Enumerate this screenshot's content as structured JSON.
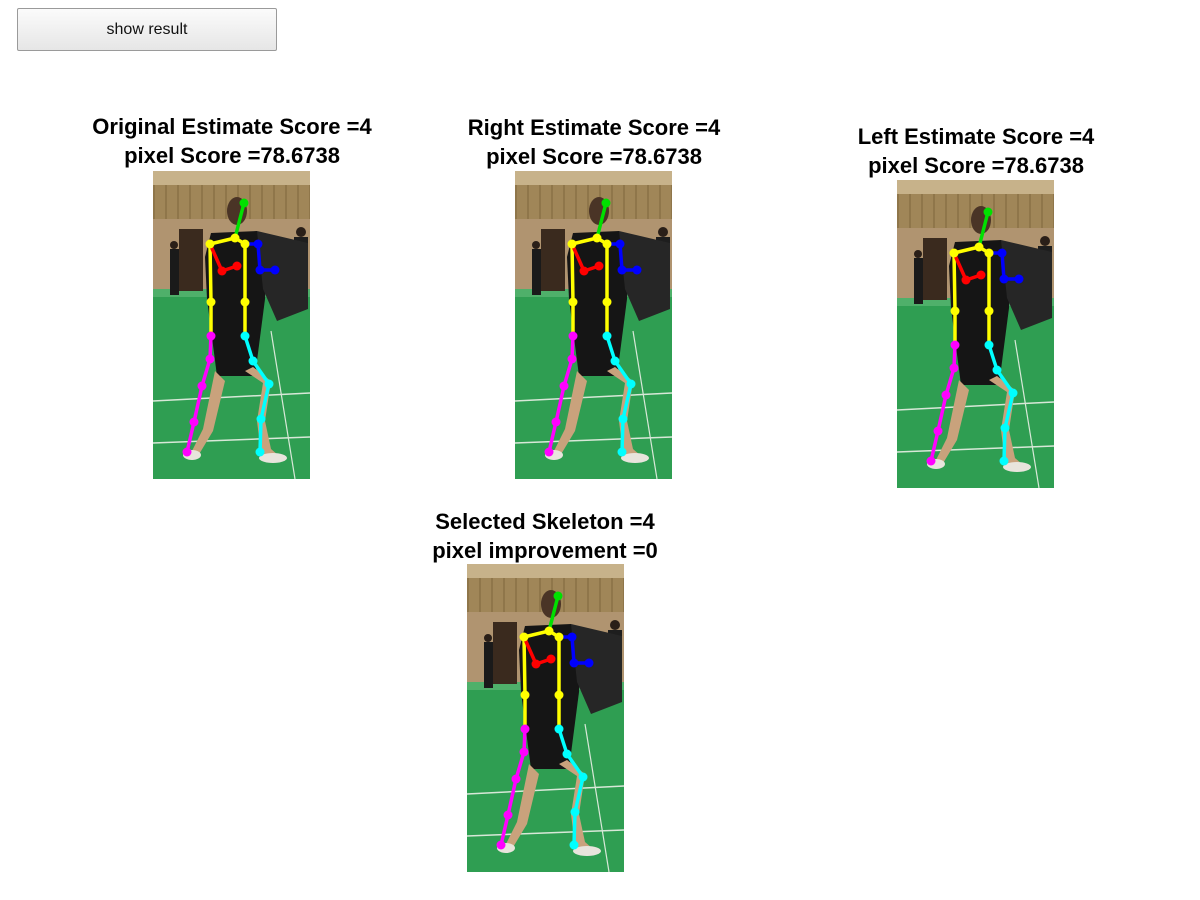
{
  "toolbar": {
    "show_result_label": "show result"
  },
  "panels": {
    "original": {
      "line1": "Original Estimate Score =4",
      "line2": "pixel Score =78.6738"
    },
    "right": {
      "line1": "Right Estimate Score =4",
      "line2": "pixel Score =78.6738"
    },
    "left": {
      "line1": "Left Estimate Score =4",
      "line2": "pixel Score =78.6738"
    },
    "selected": {
      "line1": "Selected Skeleton =4",
      "line2": "pixel improvement =0"
    }
  },
  "colors": {
    "head": "#00e000",
    "torso": "#ffff00",
    "right_arm": "#ff0000",
    "left_arm": "#0000ff",
    "right_leg": "#ff00ff",
    "left_leg": "#00ffff"
  }
}
